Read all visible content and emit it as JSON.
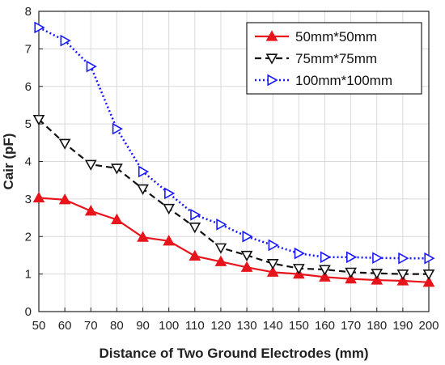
{
  "chart_data": {
    "type": "line",
    "xlabel": "Distance of Two Ground Electrodes (mm)",
    "ylabel": "Cair (pF)",
    "xlim": [
      50,
      200
    ],
    "ylim": [
      0,
      8
    ],
    "xticks": [
      50,
      60,
      70,
      80,
      90,
      100,
      110,
      120,
      130,
      140,
      150,
      160,
      170,
      180,
      190,
      200
    ],
    "yticks": [
      0,
      1,
      2,
      3,
      4,
      5,
      6,
      7,
      8
    ],
    "grid": true,
    "legend_position": "top-right",
    "x": [
      50,
      60,
      70,
      80,
      90,
      100,
      110,
      120,
      130,
      140,
      150,
      160,
      170,
      180,
      190,
      200
    ],
    "series": [
      {
        "name": "50mm*50mm",
        "color": "#e8141b",
        "line_style": "solid",
        "marker": "triangle-up",
        "values": [
          3.03,
          2.98,
          2.68,
          2.45,
          1.98,
          1.88,
          1.48,
          1.33,
          1.18,
          1.05,
          1.0,
          0.92,
          0.87,
          0.84,
          0.82,
          0.78
        ]
      },
      {
        "name": "75mm*75mm",
        "color": "#111111",
        "line_style": "dashed",
        "marker": "triangle-down",
        "values": [
          5.12,
          4.48,
          3.92,
          3.82,
          3.27,
          2.75,
          2.25,
          1.7,
          1.5,
          1.28,
          1.15,
          1.12,
          1.05,
          1.02,
          1.0,
          1.0
        ]
      },
      {
        "name": "100mm*100mm",
        "color": "#1a1aff",
        "line_style": "dotted",
        "marker": "triangle-right",
        "values": [
          7.57,
          7.22,
          6.53,
          4.87,
          3.73,
          3.15,
          2.58,
          2.32,
          2.0,
          1.77,
          1.55,
          1.45,
          1.45,
          1.43,
          1.42,
          1.42
        ]
      }
    ]
  }
}
